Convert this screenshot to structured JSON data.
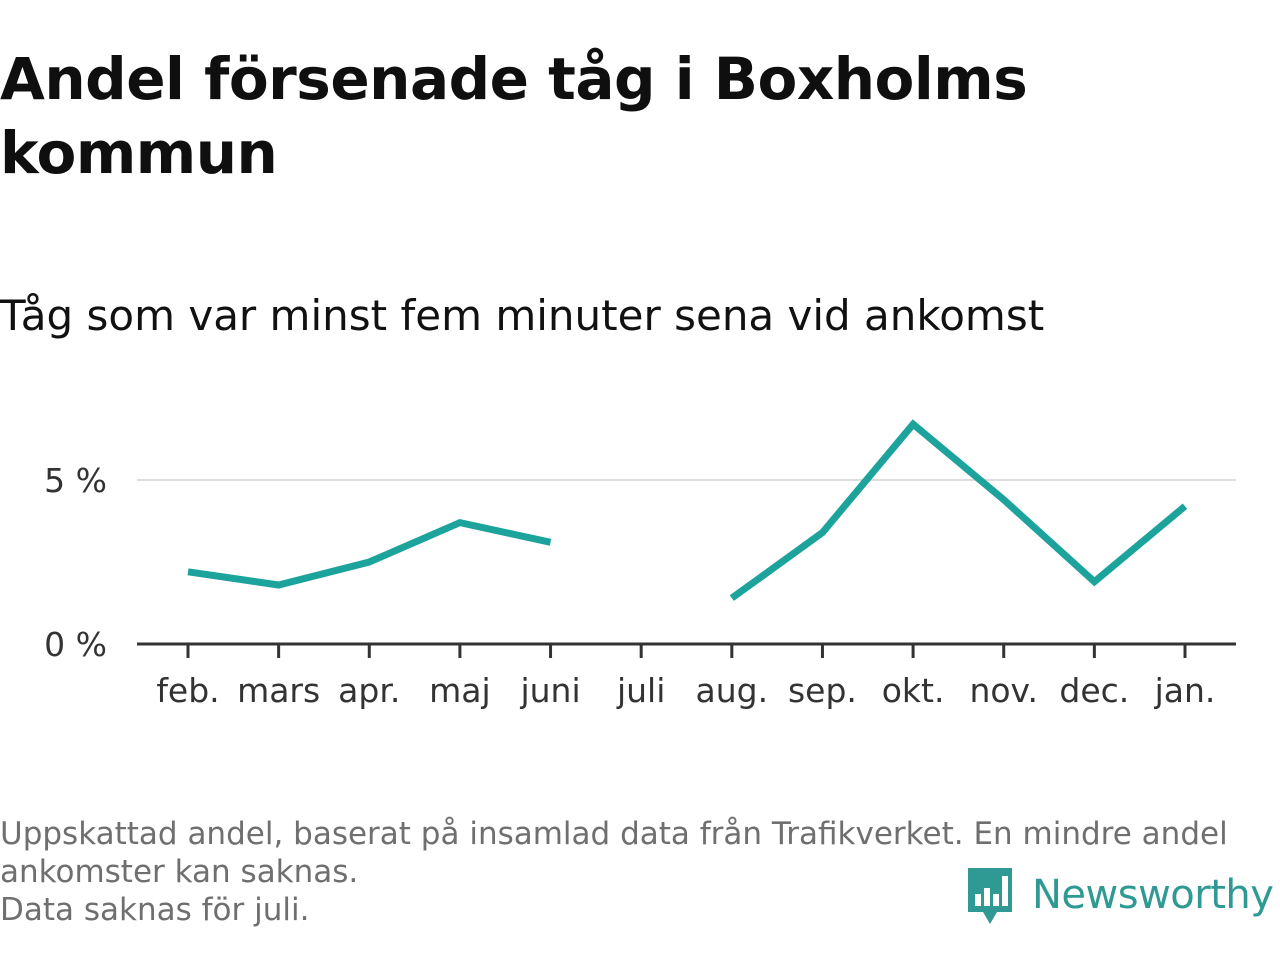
{
  "title": "Andel försenade tåg i Boxholms kommun",
  "subtitle": "Tåg som var minst fem minuter sena vid ankomst",
  "chart_data": {
    "type": "line",
    "categories": [
      "feb.",
      "mars",
      "apr.",
      "maj",
      "juni",
      "juli",
      "aug.",
      "sep.",
      "okt.",
      "nov.",
      "dec.",
      "jan."
    ],
    "series": [
      {
        "values": [
          2.2,
          1.8,
          2.5,
          3.7,
          3.1,
          null,
          1.4,
          3.4,
          6.7,
          4.4,
          1.9,
          4.2
        ],
        "color": "#1ba39c"
      }
    ],
    "yticks": [
      {
        "value": 0,
        "label": "0 %"
      },
      {
        "value": 5,
        "label": "5 %"
      }
    ],
    "ylim": [
      0,
      7.5
    ],
    "grid": true,
    "xlabel": "",
    "ylabel": ""
  },
  "footnote": {
    "line1": "Uppskattad andel, baserat på insamlad data från Trafikverket. En mindre andel",
    "line2": "ankomster kan saknas.",
    "line3": "Data saknas för juli."
  },
  "brand": {
    "name": "Newsworthy",
    "icon": "newsworthy-logo-icon",
    "color": "#2f9a94"
  }
}
